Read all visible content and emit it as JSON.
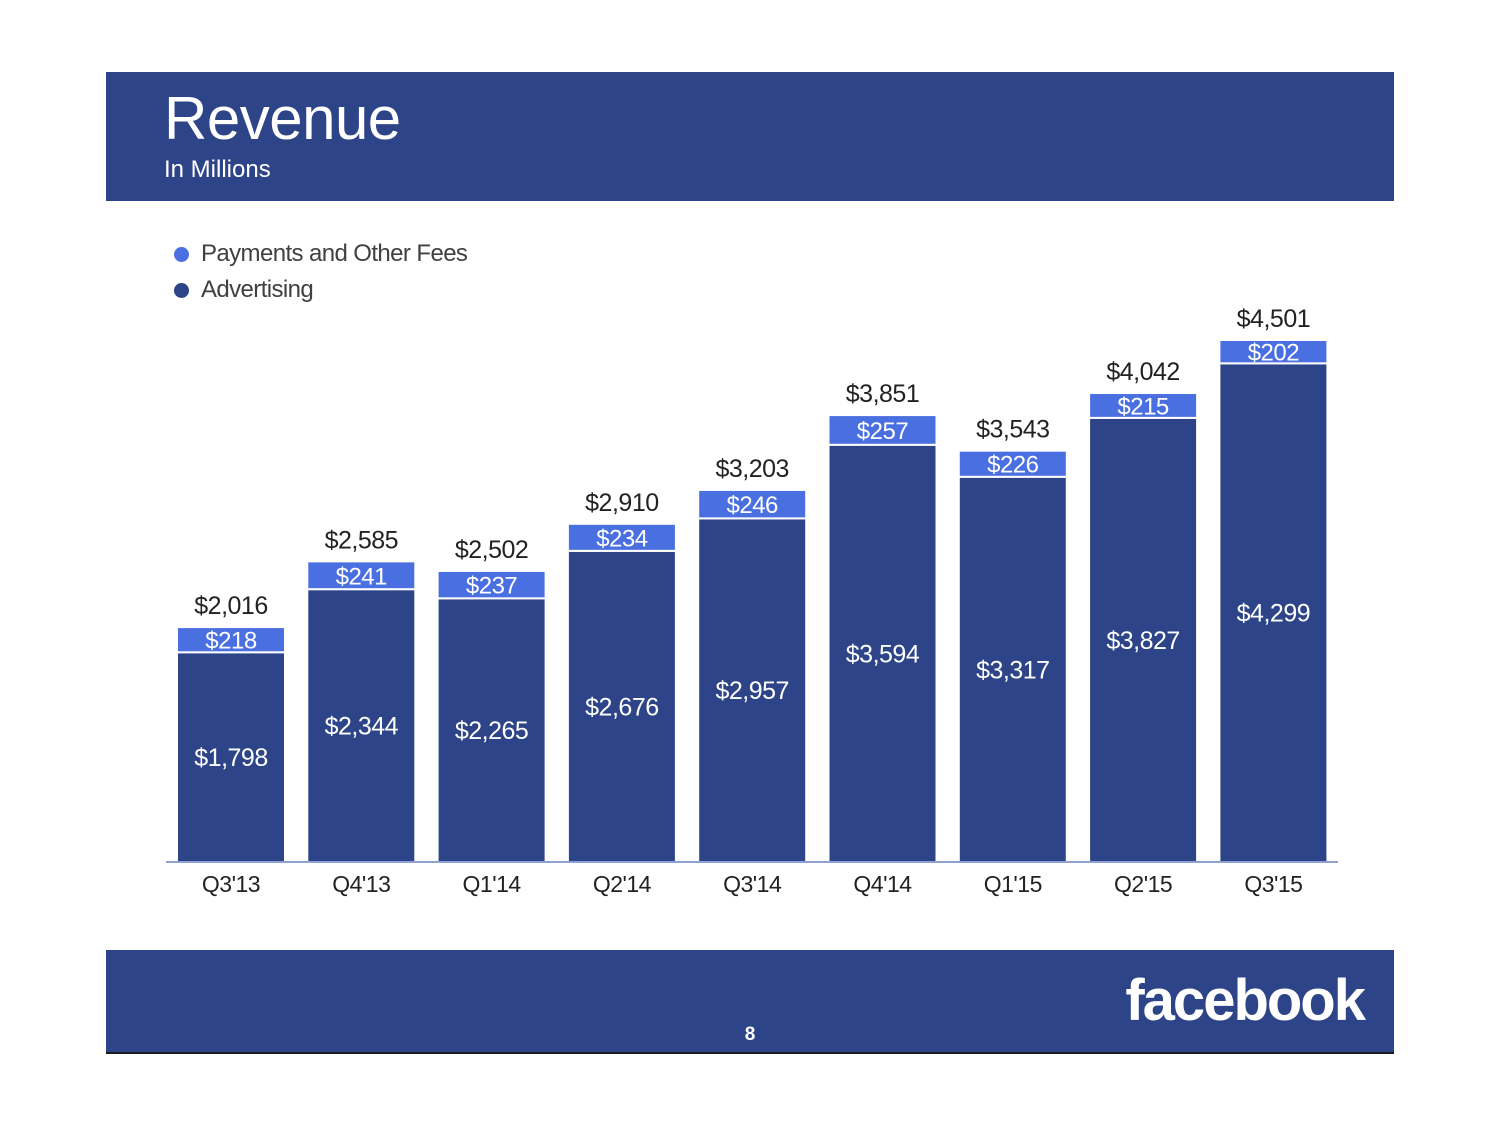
{
  "header": {
    "title": "Revenue",
    "subtitle": "In Millions"
  },
  "footer": {
    "page_number": "8",
    "brand": "facebook"
  },
  "colors": {
    "band": "#2d4488",
    "advertising": "#2d4488",
    "payments": "#4a6fe0",
    "axis": "#8fa1d0",
    "text_dark": "#222222"
  },
  "chart_data": {
    "type": "bar",
    "stacked": true,
    "title": "Revenue",
    "subtitle": "In Millions",
    "categories": [
      "Q3'13",
      "Q4'13",
      "Q1'14",
      "Q2'14",
      "Q3'14",
      "Q4'14",
      "Q1'15",
      "Q2'15",
      "Q3'15"
    ],
    "series": [
      {
        "name": "Advertising",
        "color": "#2d4488",
        "values": [
          1798,
          2344,
          2265,
          2676,
          2957,
          3594,
          3317,
          3827,
          4299
        ],
        "labels": [
          "$1,798",
          "$2,344",
          "$2,265",
          "$2,676",
          "$2,957",
          "$3,594",
          "$3,317",
          "$3,827",
          "$4,299"
        ]
      },
      {
        "name": "Payments and Other Fees",
        "color": "#4a6fe0",
        "values": [
          218,
          241,
          237,
          234,
          246,
          257,
          226,
          215,
          202
        ],
        "labels": [
          "$218",
          "$241",
          "$237",
          "$234",
          "$246",
          "$257",
          "$226",
          "$215",
          "$202"
        ]
      }
    ],
    "totals": [
      2016,
      2585,
      2502,
      2910,
      3203,
      3851,
      3543,
      4042,
      4501
    ],
    "total_labels": [
      "$2,016",
      "$2,585",
      "$2,502",
      "$2,910",
      "$3,203",
      "$3,851",
      "$3,543",
      "$4,042",
      "$4,501"
    ],
    "legend": {
      "position": "top-left",
      "order": [
        "Payments and Other Fees",
        "Advertising"
      ]
    },
    "ylim": [
      0,
      4501
    ],
    "grid": false,
    "xlabel": "",
    "ylabel": ""
  }
}
